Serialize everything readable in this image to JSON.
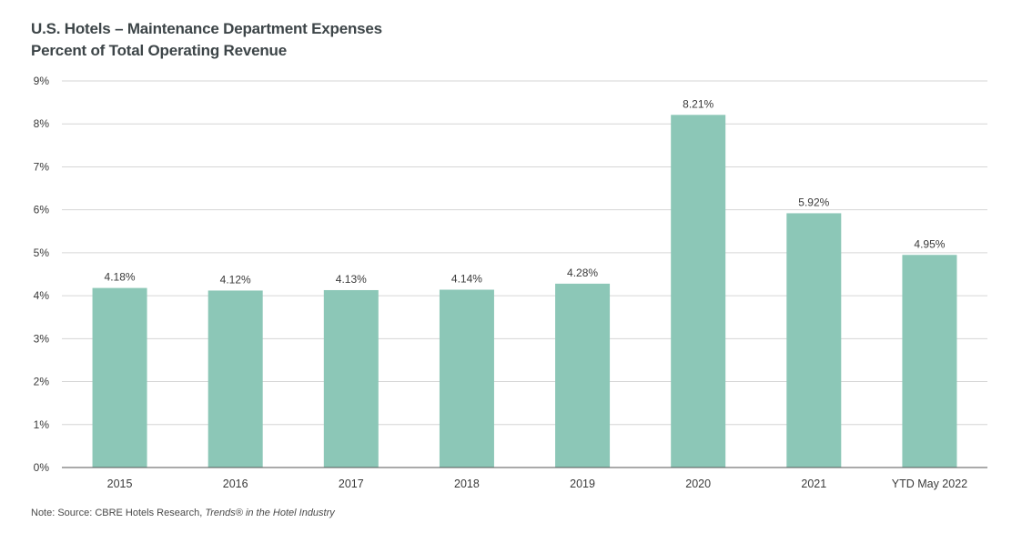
{
  "chart_data": {
    "type": "bar",
    "title": "U.S. Hotels – Maintenance Department Expenses",
    "subtitle": "Percent of Total Operating Revenue",
    "categories": [
      "2015",
      "2016",
      "2017",
      "2018",
      "2019",
      "2020",
      "2021",
      "YTD May 2022"
    ],
    "values": [
      4.18,
      4.12,
      4.13,
      4.14,
      4.28,
      8.21,
      5.92,
      4.95
    ],
    "data_labels": [
      "4.18%",
      "4.12%",
      "4.13%",
      "4.14%",
      "4.28%",
      "8.21%",
      "5.92%",
      "4.95%"
    ],
    "ylim": [
      0,
      9
    ],
    "yticks": [
      "0%",
      "1%",
      "2%",
      "3%",
      "4%",
      "5%",
      "6%",
      "7%",
      "8%",
      "9%"
    ],
    "xlabel": "",
    "ylabel": "",
    "grid": true,
    "bar_color": "#8cc7b7",
    "grid_color": "#d6d6d6",
    "axis_color": "#555555"
  },
  "note": {
    "prefix": "Note:  Source: CBRE Hotels Research, ",
    "italic": "Trends® in the Hotel Industry"
  }
}
